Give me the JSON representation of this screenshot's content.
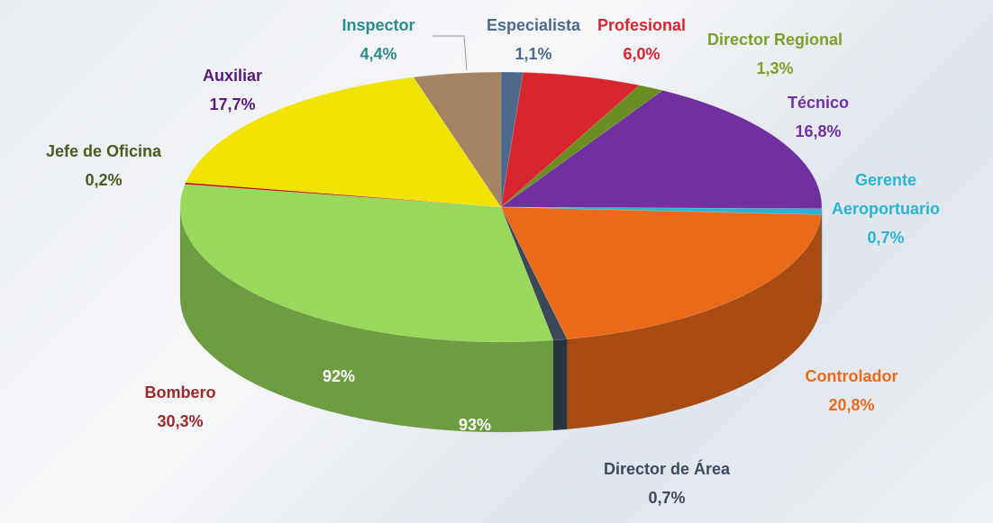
{
  "chart_data": {
    "type": "pie",
    "categories": [
      "Especialista",
      "Profesional",
      "Director Regional",
      "Técnico",
      "Gerente Aeroportuario",
      "Controlador",
      "Director de Área",
      "Bombero",
      "Jefe de Oficina",
      "Auxiliar",
      "Inspector"
    ],
    "values": [
      1.1,
      6.0,
      1.3,
      16.8,
      0.7,
      20.8,
      0.7,
      30.3,
      0.2,
      17.7,
      4.4
    ],
    "value_labels": [
      "1,1%",
      "6,0%",
      "1,3%",
      "16,8%",
      "0,7%",
      "20,8%",
      "0,7%",
      "30,3%",
      "0,2%",
      "17,7%",
      "4,4%"
    ],
    "colors": [
      "#4d6a8c",
      "#d8262e",
      "#6b8e23",
      "#7030a0",
      "#2ab4d4",
      "#ea6a1a",
      "#3b4858",
      "#98d85a",
      "#c00000",
      "#f2e200",
      "#a48462"
    ],
    "label_colors": [
      "#4d6a8c",
      "#d8262e",
      "#7aa028",
      "#7030a0",
      "#2ab4d4",
      "#ea6a1a",
      "#3c4a60",
      "#a0282a",
      "#4a5a20",
      "#5a1a7a",
      "#2e8b8b"
    ],
    "annotations": [
      "92%",
      "93%"
    ]
  }
}
